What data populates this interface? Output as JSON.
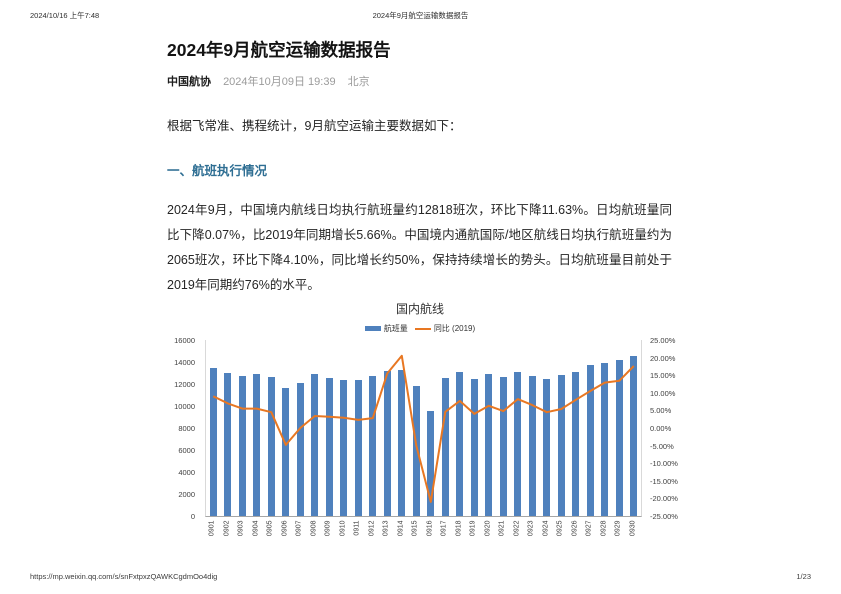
{
  "print_header": {
    "datetime": "2024/10/16 上午7:48",
    "doc_title": "2024年9月航空运输数据报告"
  },
  "article": {
    "title": "2024年9月航空运输数据报告",
    "author": "中国航协",
    "publish_date": "2024年10月09日 19:39",
    "location": "北京",
    "intro": "根据飞常准、携程统计，9月航空运输主要数据如下：",
    "section1_heading": "一、航班执行情况",
    "section1_para": "2024年9月，中国境内航线日均执行航班量约12818班次，环比下降11.63%。日均航班量同比下降0.07%，比2019年同期增长5.66%。中国境内通航国际/地区航线日均执行航班量约为2065班次，环比下降4.10%，同比增长约50%，保持持续增长的势头。日均航班量目前处于2019年同期约76%的水平。"
  },
  "chart_data": {
    "type": "bar",
    "title": "国内航线",
    "categories": [
      "0901",
      "0902",
      "0903",
      "0904",
      "0905",
      "0906",
      "0907",
      "0908",
      "0909",
      "0910",
      "0911",
      "0912",
      "0913",
      "0914",
      "0915",
      "0916",
      "0917",
      "0918",
      "0919",
      "0920",
      "0921",
      "0922",
      "0923",
      "0924",
      "0925",
      "0926",
      "0927",
      "0928",
      "0929",
      "0930"
    ],
    "series": [
      {
        "name": "航班量",
        "type": "bar",
        "axis": "left",
        "values": [
          13450,
          13000,
          12750,
          12900,
          12600,
          11650,
          12100,
          12900,
          12550,
          12350,
          12400,
          12700,
          13200,
          13250,
          11800,
          9550,
          12550,
          13100,
          12500,
          12900,
          12600,
          13100,
          12750,
          12450,
          12800,
          13050,
          13700,
          13900,
          14150,
          14550
        ]
      },
      {
        "name": "同比 (2019)",
        "type": "line",
        "axis": "right",
        "values": [
          9.0,
          7.0,
          5.5,
          5.5,
          4.5,
          -4.8,
          0.0,
          3.4,
          3.2,
          2.9,
          2.3,
          2.8,
          15.5,
          20.5,
          -5.0,
          -21.0,
          4.6,
          7.7,
          4.0,
          6.3,
          4.8,
          8.2,
          6.5,
          4.5,
          5.4,
          8.0,
          10.5,
          12.9,
          13.4,
          17.6
        ]
      }
    ],
    "left_axis": {
      "min": 0,
      "max": 16000,
      "step": 2000,
      "ticks": [
        "16000",
        "14000",
        "12000",
        "10000",
        "8000",
        "6000",
        "4000",
        "2000",
        "0"
      ]
    },
    "right_axis": {
      "min": -25,
      "max": 25,
      "step": 5,
      "ticks": [
        "25.00%",
        "20.00%",
        "15.00%",
        "10.00%",
        "5.00%",
        "0.00%",
        "-5.00%",
        "-10.00%",
        "-15.00%",
        "-20.00%",
        "-25.00%"
      ]
    },
    "colors": {
      "bar": "#4f81bd",
      "line": "#e87722"
    },
    "legend_position": "top",
    "grid": "off"
  },
  "footer": {
    "url": "https://mp.weixin.qq.com/s/snFxtpxzQAWKCgdmOo4dig",
    "page": "1/23"
  }
}
